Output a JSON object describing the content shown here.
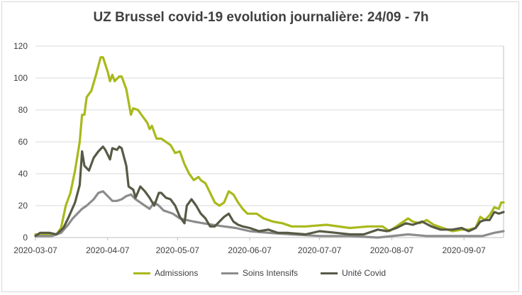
{
  "chart_data": {
    "type": "line",
    "title": "UZ Brussel covid-19 evolution journalière: 24/09 - 7h",
    "xlabel": "",
    "ylabel": "",
    "ylim": [
      0,
      120
    ],
    "yticks": [
      "0",
      "20",
      "40",
      "60",
      "80",
      "100",
      "120"
    ],
    "x_start": "2020-03-07",
    "x_end": "2020-09-24",
    "xticks": [
      "2020-03-07",
      "2020-04-07",
      "2020-05-07",
      "2020-06-07",
      "2020-07-07",
      "2020-08-07",
      "2020-09-07"
    ],
    "grid": "horizontal",
    "legend_position": "bottom",
    "series": [
      {
        "name": "Admissions",
        "color": "#a9b91b",
        "points": [
          [
            "2020-03-07",
            2
          ],
          [
            "2020-03-10",
            2
          ],
          [
            "2020-03-13",
            2
          ],
          [
            "2020-03-16",
            2
          ],
          [
            "2020-03-18",
            6
          ],
          [
            "2020-03-20",
            20
          ],
          [
            "2020-03-22",
            28
          ],
          [
            "2020-03-24",
            42
          ],
          [
            "2020-03-26",
            60
          ],
          [
            "2020-03-27",
            77
          ],
          [
            "2020-03-28",
            77
          ],
          [
            "2020-03-29",
            88
          ],
          [
            "2020-03-31",
            92
          ],
          [
            "2020-04-02",
            102
          ],
          [
            "2020-04-04",
            113
          ],
          [
            "2020-04-05",
            113
          ],
          [
            "2020-04-07",
            104
          ],
          [
            "2020-04-08",
            98
          ],
          [
            "2020-04-09",
            102
          ],
          [
            "2020-04-10",
            98
          ],
          [
            "2020-04-12",
            101
          ],
          [
            "2020-04-13",
            101
          ],
          [
            "2020-04-15",
            93
          ],
          [
            "2020-04-17",
            77
          ],
          [
            "2020-04-18",
            81
          ],
          [
            "2020-04-20",
            80
          ],
          [
            "2020-04-22",
            76
          ],
          [
            "2020-04-24",
            72
          ],
          [
            "2020-04-25",
            68
          ],
          [
            "2020-04-26",
            70
          ],
          [
            "2020-04-28",
            62
          ],
          [
            "2020-04-30",
            62
          ],
          [
            "2020-05-02",
            60
          ],
          [
            "2020-05-04",
            58
          ],
          [
            "2020-05-06",
            53
          ],
          [
            "2020-05-08",
            54
          ],
          [
            "2020-05-10",
            46
          ],
          [
            "2020-05-12",
            40
          ],
          [
            "2020-05-14",
            36
          ],
          [
            "2020-05-16",
            38
          ],
          [
            "2020-05-17",
            36
          ],
          [
            "2020-05-19",
            34
          ],
          [
            "2020-05-21",
            28
          ],
          [
            "2020-05-23",
            22
          ],
          [
            "2020-05-25",
            20
          ],
          [
            "2020-05-27",
            22
          ],
          [
            "2020-05-29",
            29
          ],
          [
            "2020-05-31",
            27
          ],
          [
            "2020-06-02",
            22
          ],
          [
            "2020-06-04",
            18
          ],
          [
            "2020-06-06",
            15
          ],
          [
            "2020-06-10",
            15
          ],
          [
            "2020-06-13",
            12
          ],
          [
            "2020-06-17",
            10
          ],
          [
            "2020-06-21",
            9
          ],
          [
            "2020-06-25",
            7
          ],
          [
            "2020-07-01",
            7
          ],
          [
            "2020-07-10",
            8
          ],
          [
            "2020-07-20",
            6
          ],
          [
            "2020-07-28",
            7
          ],
          [
            "2020-08-03",
            7
          ],
          [
            "2020-08-06",
            4
          ],
          [
            "2020-08-10",
            8
          ],
          [
            "2020-08-14",
            12
          ],
          [
            "2020-08-16",
            10
          ],
          [
            "2020-08-19",
            9
          ],
          [
            "2020-08-22",
            11
          ],
          [
            "2020-08-25",
            8
          ],
          [
            "2020-08-29",
            6
          ],
          [
            "2020-09-02",
            4
          ],
          [
            "2020-09-06",
            5
          ],
          [
            "2020-09-09",
            5
          ],
          [
            "2020-09-12",
            6
          ],
          [
            "2020-09-14",
            13
          ],
          [
            "2020-09-16",
            11
          ],
          [
            "2020-09-18",
            14
          ],
          [
            "2020-09-20",
            19
          ],
          [
            "2020-09-22",
            18
          ],
          [
            "2020-09-23",
            22
          ],
          [
            "2020-09-24",
            22
          ]
        ]
      },
      {
        "name": "Soins Intensifs",
        "color": "#8c8c8c",
        "points": [
          [
            "2020-03-07",
            1
          ],
          [
            "2020-03-14",
            1
          ],
          [
            "2020-03-18",
            3
          ],
          [
            "2020-03-21",
            8
          ],
          [
            "2020-03-23",
            12
          ],
          [
            "2020-03-25",
            15
          ],
          [
            "2020-03-27",
            18
          ],
          [
            "2020-03-29",
            20
          ],
          [
            "2020-04-01",
            24
          ],
          [
            "2020-04-03",
            28
          ],
          [
            "2020-04-05",
            29
          ],
          [
            "2020-04-07",
            26
          ],
          [
            "2020-04-09",
            23
          ],
          [
            "2020-04-11",
            23
          ],
          [
            "2020-04-13",
            24
          ],
          [
            "2020-04-15",
            26
          ],
          [
            "2020-04-17",
            27
          ],
          [
            "2020-04-19",
            24
          ],
          [
            "2020-04-21",
            22
          ],
          [
            "2020-04-23",
            20
          ],
          [
            "2020-04-25",
            18
          ],
          [
            "2020-04-27",
            22
          ],
          [
            "2020-04-29",
            20
          ],
          [
            "2020-05-01",
            17
          ],
          [
            "2020-05-03",
            16
          ],
          [
            "2020-05-05",
            15
          ],
          [
            "2020-05-08",
            12
          ],
          [
            "2020-05-11",
            11
          ],
          [
            "2020-05-14",
            10
          ],
          [
            "2020-05-18",
            9
          ],
          [
            "2020-05-22",
            8
          ],
          [
            "2020-05-27",
            7
          ],
          [
            "2020-06-01",
            6
          ],
          [
            "2020-06-07",
            4
          ],
          [
            "2020-06-15",
            3
          ],
          [
            "2020-06-25",
            2
          ],
          [
            "2020-07-07",
            1
          ],
          [
            "2020-07-20",
            1
          ],
          [
            "2020-08-01",
            0
          ],
          [
            "2020-08-14",
            2
          ],
          [
            "2020-08-22",
            1
          ],
          [
            "2020-09-05",
            1
          ],
          [
            "2020-09-15",
            1
          ],
          [
            "2020-09-20",
            3
          ],
          [
            "2020-09-24",
            4
          ]
        ]
      },
      {
        "name": "Unité Covid",
        "color": "#575a45",
        "points": [
          [
            "2020-03-07",
            1
          ],
          [
            "2020-03-09",
            3
          ],
          [
            "2020-03-11",
            3
          ],
          [
            "2020-03-13",
            3
          ],
          [
            "2020-03-16",
            2
          ],
          [
            "2020-03-19",
            6
          ],
          [
            "2020-03-21",
            12
          ],
          [
            "2020-03-24",
            22
          ],
          [
            "2020-03-26",
            33
          ],
          [
            "2020-03-27",
            54
          ],
          [
            "2020-03-28",
            45
          ],
          [
            "2020-03-30",
            42
          ],
          [
            "2020-04-01",
            50
          ],
          [
            "2020-04-03",
            54
          ],
          [
            "2020-04-05",
            57
          ],
          [
            "2020-04-06",
            55
          ],
          [
            "2020-04-08",
            49
          ],
          [
            "2020-04-09",
            56
          ],
          [
            "2020-04-11",
            55
          ],
          [
            "2020-04-12",
            57
          ],
          [
            "2020-04-13",
            56
          ],
          [
            "2020-04-15",
            45
          ],
          [
            "2020-04-16",
            32
          ],
          [
            "2020-04-18",
            30
          ],
          [
            "2020-04-19",
            25
          ],
          [
            "2020-04-21",
            32
          ],
          [
            "2020-04-23",
            29
          ],
          [
            "2020-04-25",
            25
          ],
          [
            "2020-04-27",
            20
          ],
          [
            "2020-04-29",
            28
          ],
          [
            "2020-04-30",
            28
          ],
          [
            "2020-05-02",
            25
          ],
          [
            "2020-05-04",
            24
          ],
          [
            "2020-05-06",
            20
          ],
          [
            "2020-05-08",
            13
          ],
          [
            "2020-05-10",
            9
          ],
          [
            "2020-05-11",
            20
          ],
          [
            "2020-05-13",
            24
          ],
          [
            "2020-05-15",
            20
          ],
          [
            "2020-05-17",
            15
          ],
          [
            "2020-05-19",
            12
          ],
          [
            "2020-05-21",
            7
          ],
          [
            "2020-05-23",
            7
          ],
          [
            "2020-05-25",
            10
          ],
          [
            "2020-05-27",
            13
          ],
          [
            "2020-05-29",
            15
          ],
          [
            "2020-05-31",
            10
          ],
          [
            "2020-06-02",
            8
          ],
          [
            "2020-06-04",
            7
          ],
          [
            "2020-06-07",
            6
          ],
          [
            "2020-06-11",
            4
          ],
          [
            "2020-06-15",
            5
          ],
          [
            "2020-06-19",
            3
          ],
          [
            "2020-06-23",
            3
          ],
          [
            "2020-07-01",
            2
          ],
          [
            "2020-07-07",
            4
          ],
          [
            "2020-07-14",
            3
          ],
          [
            "2020-07-20",
            2
          ],
          [
            "2020-07-26",
            2
          ],
          [
            "2020-08-01",
            5
          ],
          [
            "2020-08-05",
            4
          ],
          [
            "2020-08-09",
            6
          ],
          [
            "2020-08-13",
            9
          ],
          [
            "2020-08-16",
            8
          ],
          [
            "2020-08-20",
            10
          ],
          [
            "2020-08-24",
            7
          ],
          [
            "2020-08-28",
            5
          ],
          [
            "2020-09-02",
            5
          ],
          [
            "2020-09-06",
            6
          ],
          [
            "2020-09-09",
            4
          ],
          [
            "2020-09-12",
            6
          ],
          [
            "2020-09-14",
            10
          ],
          [
            "2020-09-16",
            11
          ],
          [
            "2020-09-18",
            11
          ],
          [
            "2020-09-20",
            16
          ],
          [
            "2020-09-22",
            15
          ],
          [
            "2020-09-24",
            16
          ]
        ]
      }
    ]
  }
}
